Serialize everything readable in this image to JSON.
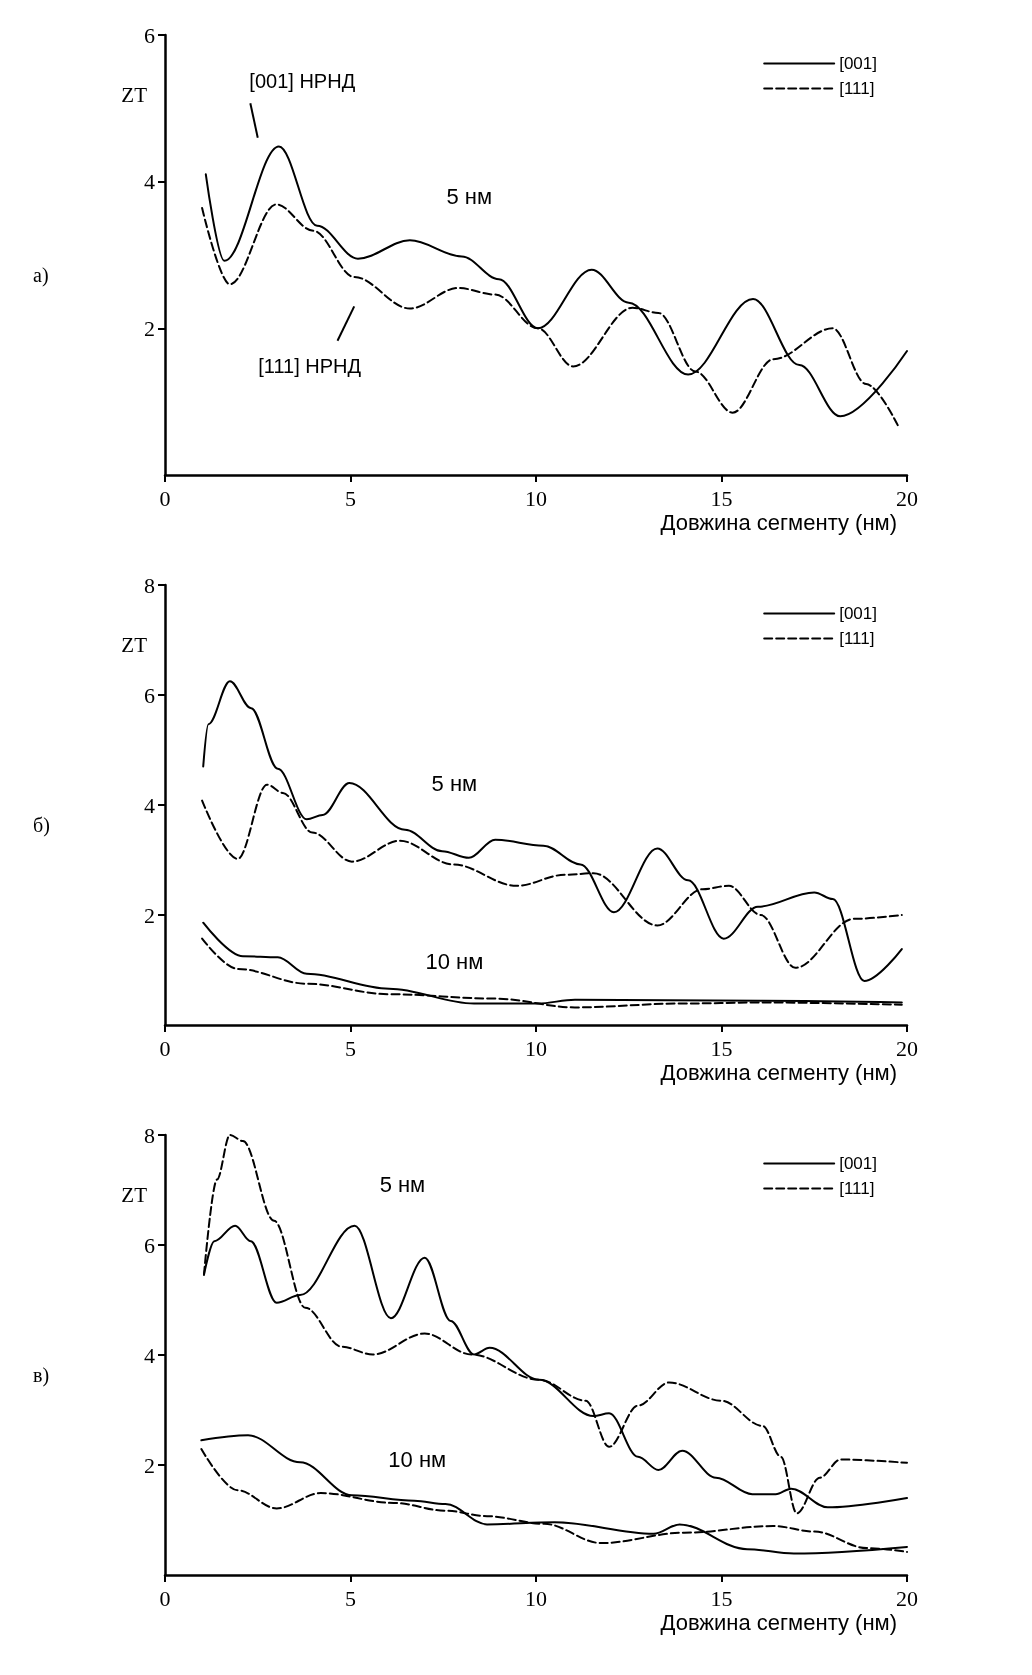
{
  "chart_data": [
    {
      "type": "line",
      "title": "а)",
      "xlabel": "Довжина сегменту (нм)",
      "ylabel": "ZT",
      "xlim": [
        0,
        20
      ],
      "xticks": [
        0,
        5,
        10,
        15,
        20
      ],
      "ylim": [
        0,
        6
      ],
      "yticks": [
        2,
        4,
        6
      ],
      "legend": "top right",
      "annotations": [
        "5 нм",
        "[001] НРНД",
        "[111] НРНД"
      ],
      "series": [
        {
          "name": "[001]",
          "color": "#000000",
          "line_style": "solid",
          "x": [
            1.1,
            1.6,
            3.07,
            4.1,
            5.2,
            6.6,
            8.0,
            9.0,
            10.05,
            11.5,
            12.5,
            14.1,
            15.85,
            17.1,
            18.2,
            20
          ],
          "values": [
            4.1,
            2.92,
            4.48,
            3.4,
            2.95,
            3.2,
            2.98,
            2.67,
            2.0,
            2.8,
            2.35,
            1.37,
            2.4,
            1.5,
            0.8,
            1.69
          ]
        },
        {
          "name": "[111]",
          "color": "#000000",
          "line_style": "dashed",
          "x": [
            1.0,
            1.75,
            3.0,
            4.0,
            5.1,
            6.6,
            7.9,
            8.9,
            10.05,
            11.0,
            12.6,
            13.3,
            14.3,
            15.3,
            16.4,
            18.0,
            18.9,
            19.75
          ],
          "values": [
            3.64,
            2.6,
            3.69,
            3.33,
            2.7,
            2.27,
            2.55,
            2.46,
            2.0,
            1.48,
            2.28,
            2.21,
            1.41,
            0.85,
            1.58,
            2.0,
            1.24,
            0.68
          ]
        }
      ]
    },
    {
      "type": "line",
      "title": "б)",
      "xlabel": "Довжина сегменту (нм)",
      "ylabel": "ZT",
      "xlim": [
        0,
        20
      ],
      "xticks": [
        0,
        5,
        10,
        15,
        20
      ],
      "ylim": [
        0,
        8
      ],
      "yticks": [
        2,
        4,
        6,
        8
      ],
      "legend": "top right",
      "annotations": [
        "5 нм",
        "10 нм"
      ],
      "series": [
        {
          "name": "[001]",
          "color": "#000000",
          "line_style": "solid",
          "x": [
            1.03,
            1.17,
            1.75,
            2.32,
            3.04,
            3.82,
            4.25,
            4.97,
            6.47,
            7.47,
            8.19,
            8.9,
            10.2,
            11.2,
            12.1,
            13.27,
            14.1,
            15.06,
            15.98,
            17.5,
            18.0,
            18.85,
            19.86
          ],
          "values": [
            4.7,
            5.47,
            6.25,
            5.76,
            4.66,
            3.74,
            3.82,
            4.4,
            3.55,
            3.16,
            3.04,
            3.37,
            3.26,
            2.92,
            2.05,
            3.21,
            2.63,
            1.57,
            2.15,
            2.41,
            2.29,
            0.8,
            1.38
          ]
        },
        {
          "name": "[111]",
          "color": "#000000",
          "line_style": "dashed",
          "x": [
            1.0,
            1.96,
            2.75,
            3.18,
            3.97,
            5.04,
            6.33,
            7.76,
            9.48,
            10.77,
            11.55,
            13.27,
            14.49,
            15.2,
            16.06,
            16.99,
            18.57,
            19.86
          ],
          "values": [
            4.08,
            3.02,
            4.37,
            4.22,
            3.5,
            2.97,
            3.35,
            2.92,
            2.53,
            2.73,
            2.76,
            1.81,
            2.47,
            2.53,
            2.0,
            1.04,
            1.93,
            2.0
          ]
        },
        {
          "color": "#000000",
          "line_style": "solid",
          "x": [
            1.03,
            2.1,
            3.04,
            3.82,
            6.04,
            8.33,
            10.05,
            11.05,
            16.06,
            19.86
          ],
          "values": [
            1.86,
            1.25,
            1.23,
            0.93,
            0.66,
            0.39,
            0.39,
            0.46,
            0.44,
            0.41
          ]
        },
        {
          "color": "#000000",
          "line_style": "dashed",
          "x": [
            1.0,
            1.96,
            3.82,
            6.04,
            8.9,
            11.05,
            13.9,
            16.06,
            19.86
          ],
          "values": [
            1.57,
            1.02,
            0.75,
            0.56,
            0.48,
            0.32,
            0.39,
            0.41,
            0.37
          ]
        }
      ]
    },
    {
      "type": "line",
      "title": "в)",
      "xlabel": "Довжина сегменту (нм)",
      "ylabel": "ZT",
      "xlim": [
        0,
        20
      ],
      "xticks": [
        0,
        5,
        10,
        15,
        20
      ],
      "ylim": [
        0,
        8
      ],
      "yticks": [
        2,
        4,
        6,
        8
      ],
      "legend": "top right",
      "annotations": [
        "5 нм",
        "10 нм"
      ],
      "series": [
        {
          "name": "[001]",
          "color": "#000000",
          "line_style": "solid",
          "x": [
            1.05,
            1.33,
            1.89,
            2.31,
            3.01,
            3.64,
            5.11,
            6.09,
            7.0,
            7.7,
            8.33,
            8.75,
            10.08,
            11.55,
            11.97,
            12.75,
            13.3,
            13.94,
            14.85,
            15.83,
            16.46,
            16.88,
            17.86,
            20
          ],
          "values": [
            5.46,
            6.07,
            6.35,
            6.07,
            4.95,
            5.09,
            6.35,
            4.67,
            5.77,
            4.62,
            4.01,
            4.13,
            3.55,
            2.89,
            2.94,
            2.15,
            1.91,
            2.26,
            1.77,
            1.47,
            1.47,
            1.57,
            1.23,
            1.4
          ]
        },
        {
          "name": "[111]",
          "color": "#000000",
          "line_style": "dashed",
          "x": [
            1.05,
            1.4,
            1.75,
            2.1,
            2.94,
            3.78,
            4.76,
            5.6,
            7.0,
            8.26,
            10.08,
            11.34,
            11.97,
            12.75,
            13.59,
            14.99,
            16.11,
            16.6,
            17.03,
            17.65,
            18.21,
            20
          ],
          "values": [
            5.46,
            7.19,
            8.0,
            7.89,
            6.44,
            4.86,
            4.15,
            4.01,
            4.39,
            4.01,
            3.55,
            3.17,
            2.33,
            3.08,
            3.5,
            3.17,
            2.71,
            2.15,
            1.12,
            1.77,
            2.1,
            2.04
          ]
        },
        {
          "color": "#000000",
          "line_style": "solid",
          "x": [
            0.98,
            2.24,
            3.64,
            5.04,
            6.72,
            7.56,
            8.68,
            10.5,
            13.17,
            13.87,
            15.69,
            16.95,
            20
          ],
          "values": [
            2.45,
            2.54,
            2.05,
            1.45,
            1.35,
            1.29,
            0.92,
            0.96,
            0.75,
            0.92,
            0.47,
            0.39,
            0.51
          ]
        },
        {
          "color": "#000000",
          "line_style": "dashed",
          "x": [
            0.98,
            1.96,
            3.01,
            4.2,
            6.16,
            7.56,
            8.68,
            10.22,
            11.76,
            14.0,
            16.39,
            17.51,
            18.91,
            20
          ],
          "values": [
            2.29,
            1.54,
            1.21,
            1.49,
            1.31,
            1.17,
            1.07,
            0.93,
            0.58,
            0.77,
            0.89,
            0.79,
            0.49,
            0.42
          ]
        }
      ]
    }
  ]
}
